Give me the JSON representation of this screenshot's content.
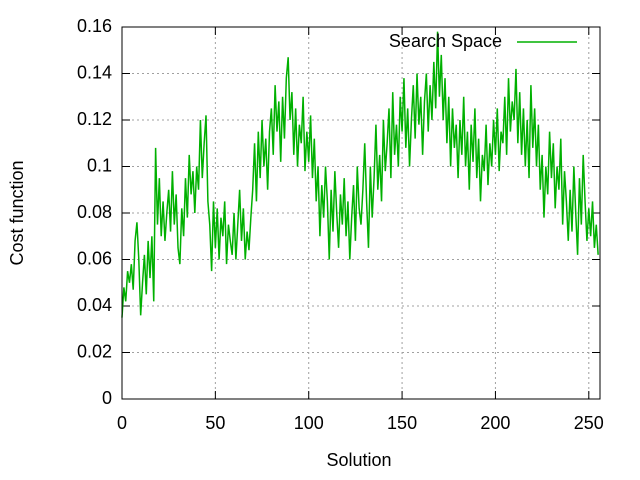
{
  "chart_data": {
    "type": "line",
    "x_label": "Solution",
    "y_label": "Cost function",
    "x": [
      0,
      1,
      2,
      3,
      4,
      5,
      6,
      7,
      8,
      9,
      10,
      11,
      12,
      13,
      14,
      15,
      16,
      17,
      18,
      19,
      20,
      21,
      22,
      23,
      24,
      25,
      26,
      27,
      28,
      29,
      30,
      31,
      32,
      33,
      34,
      35,
      36,
      37,
      38,
      39,
      40,
      41,
      42,
      43,
      44,
      45,
      46,
      47,
      48,
      49,
      50,
      51,
      52,
      53,
      54,
      55,
      56,
      57,
      58,
      59,
      60,
      61,
      62,
      63,
      64,
      65,
      66,
      67,
      68,
      69,
      70,
      71,
      72,
      73,
      74,
      75,
      76,
      77,
      78,
      79,
      80,
      81,
      82,
      83,
      84,
      85,
      86,
      87,
      88,
      89,
      90,
      91,
      92,
      93,
      94,
      95,
      96,
      97,
      98,
      99,
      100,
      101,
      102,
      103,
      104,
      105,
      106,
      107,
      108,
      109,
      110,
      111,
      112,
      113,
      114,
      115,
      116,
      117,
      118,
      119,
      120,
      121,
      122,
      123,
      124,
      125,
      126,
      127,
      128,
      129,
      130,
      131,
      132,
      133,
      134,
      135,
      136,
      137,
      138,
      139,
      140,
      141,
      142,
      143,
      144,
      145,
      146,
      147,
      148,
      149,
      150,
      151,
      152,
      153,
      154,
      155,
      156,
      157,
      158,
      159,
      160,
      161,
      162,
      163,
      164,
      165,
      166,
      167,
      168,
      169,
      170,
      171,
      172,
      173,
      174,
      175,
      176,
      177,
      178,
      179,
      180,
      181,
      182,
      183,
      184,
      185,
      186,
      187,
      188,
      189,
      190,
      191,
      192,
      193,
      194,
      195,
      196,
      197,
      198,
      199,
      200,
      201,
      202,
      203,
      204,
      205,
      206,
      207,
      208,
      209,
      210,
      211,
      212,
      213,
      214,
      215,
      216,
      217,
      218,
      219,
      220,
      221,
      222,
      223,
      224,
      225,
      226,
      227,
      228,
      229,
      230,
      231,
      232,
      233,
      234,
      235,
      236,
      237,
      238,
      239,
      240,
      241,
      242,
      243,
      244,
      245,
      246,
      247,
      248,
      249,
      250,
      251,
      252,
      253,
      254,
      255
    ],
    "series": [
      {
        "name": "Search Space",
        "color": "#00b000",
        "values": [
          0.035,
          0.048,
          0.042,
          0.055,
          0.05,
          0.058,
          0.047,
          0.068,
          0.076,
          0.06,
          0.036,
          0.05,
          0.062,
          0.045,
          0.068,
          0.052,
          0.07,
          0.042,
          0.108,
          0.075,
          0.095,
          0.07,
          0.085,
          0.068,
          0.08,
          0.09,
          0.072,
          0.098,
          0.075,
          0.088,
          0.065,
          0.058,
          0.082,
          0.07,
          0.095,
          0.078,
          0.105,
          0.088,
          0.098,
          0.08,
          0.1,
          0.09,
          0.12,
          0.095,
          0.11,
          0.122,
          0.085,
          0.075,
          0.055,
          0.085,
          0.065,
          0.082,
          0.06,
          0.078,
          0.07,
          0.085,
          0.058,
          0.075,
          0.068,
          0.062,
          0.08,
          0.06,
          0.075,
          0.09,
          0.068,
          0.082,
          0.06,
          0.072,
          0.064,
          0.078,
          0.09,
          0.11,
          0.085,
          0.115,
          0.095,
          0.12,
          0.1,
          0.112,
          0.09,
          0.115,
          0.125,
          0.105,
          0.135,
          0.115,
          0.128,
          0.102,
          0.13,
          0.112,
          0.138,
          0.147,
          0.12,
          0.132,
          0.105,
          0.125,
          0.1,
          0.118,
          0.11,
          0.13,
          0.098,
          0.115,
          0.102,
          0.122,
          0.095,
          0.112,
          0.085,
          0.1,
          0.07,
          0.092,
          0.078,
          0.1,
          0.085,
          0.06,
          0.09,
          0.072,
          0.098,
          0.08,
          0.065,
          0.088,
          0.075,
          0.095,
          0.07,
          0.085,
          0.06,
          0.078,
          0.092,
          0.068,
          0.1,
          0.082,
          0.075,
          0.09,
          0.11,
          0.085,
          0.065,
          0.1,
          0.078,
          0.095,
          0.118,
          0.09,
          0.105,
          0.085,
          0.12,
          0.098,
          0.11,
          0.125,
          0.095,
          0.132,
          0.105,
          0.118,
          0.1,
          0.13,
          0.115,
          0.138,
          0.108,
          0.125,
          0.1,
          0.12,
          0.135,
          0.112,
          0.14,
          0.118,
          0.13,
          0.105,
          0.128,
          0.14,
          0.115,
          0.135,
          0.12,
          0.145,
          0.125,
          0.158,
          0.13,
          0.148,
          0.12,
          0.138,
          0.11,
          0.13,
          0.1,
          0.125,
          0.108,
          0.118,
          0.095,
          0.12,
          0.105,
          0.13,
          0.1,
          0.115,
          0.09,
          0.118,
          0.102,
          0.125,
          0.095,
          0.112,
          0.085,
          0.105,
          0.098,
          0.118,
          0.092,
          0.11,
          0.1,
          0.12,
          0.105,
          0.125,
          0.098,
          0.115,
          0.11,
          0.13,
          0.105,
          0.138,
          0.115,
          0.128,
          0.12,
          0.142,
          0.11,
          0.132,
          0.105,
          0.125,
          0.1,
          0.12,
          0.095,
          0.135,
          0.108,
          0.125,
          0.1,
          0.118,
          0.09,
          0.105,
          0.078,
          0.1,
          0.088,
          0.115,
          0.095,
          0.11,
          0.082,
          0.1,
          0.09,
          0.112,
          0.075,
          0.098,
          0.085,
          0.068,
          0.09,
          0.072,
          0.1,
          0.08,
          0.062,
          0.095,
          0.075,
          0.105,
          0.085,
          0.068,
          0.082,
          0.07,
          0.085,
          0.065,
          0.075,
          0.062
        ]
      }
    ],
    "xlim": [
      0,
      256
    ],
    "ylim": [
      0,
      0.16
    ],
    "xticks": [
      0,
      50,
      100,
      150,
      200,
      250
    ],
    "yticks": [
      0,
      0.02,
      0.04,
      0.06,
      0.08,
      0.1,
      0.12,
      0.14,
      0.16
    ],
    "grid": true,
    "legend": "upper right"
  }
}
